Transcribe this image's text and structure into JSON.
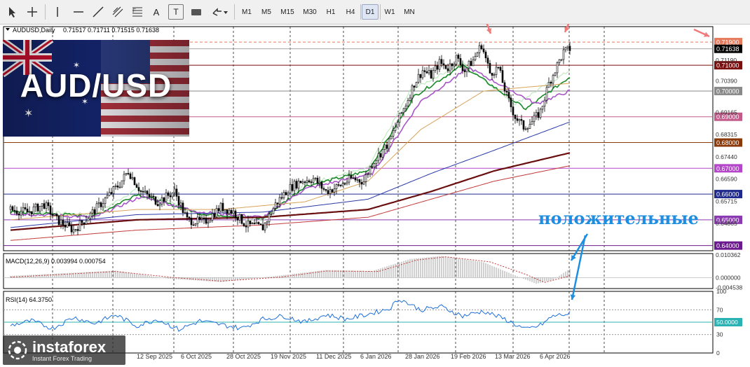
{
  "toolbar": {
    "tools": [
      "cursor-icon",
      "crosshair-icon",
      "vertical-line-icon",
      "horizontal-line-icon",
      "trendline-icon",
      "channel-icon",
      "fibonacci-icon",
      "text-tool-icon",
      "text-label-icon",
      "shapes-icon",
      "arrows-icon"
    ],
    "text_tool_label": "A",
    "label_tool_label": "T",
    "timeframes": [
      "M1",
      "M5",
      "M15",
      "M30",
      "H1",
      "H4",
      "D1",
      "W1",
      "MN"
    ],
    "active_timeframe": "D1"
  },
  "header": {
    "symbol": "AUDUSD,Daily",
    "ohlc": "0.71517 0.71711 0.71515 0.71638"
  },
  "badge": {
    "text": "AUD/USD"
  },
  "annotation": {
    "text": "положительные"
  },
  "brand": {
    "name": "instaforex",
    "tagline": "Instant Forex Trading"
  },
  "chart_data": [
    {
      "type": "candlestick",
      "title": "AUDUSD,Daily",
      "ylim": [
        0.638,
        0.725
      ],
      "price_ticks": [
        "0.71190",
        "0.70390",
        "0.69165",
        "0.68315",
        "0.67440",
        "0.66590",
        "0.65715",
        "0.64865"
      ],
      "current_price": "0.71638",
      "levels": [
        {
          "label": "0.71900",
          "value": 0.719,
          "color": "#e57a5c"
        },
        {
          "label": "0.71000",
          "value": 0.71,
          "color": "#7a0f0f"
        },
        {
          "label": "0.70000",
          "value": 0.7,
          "color": "#8a8a8a"
        },
        {
          "label": "0.69000",
          "value": 0.69,
          "color": "#c25b8a"
        },
        {
          "label": "0.68000",
          "value": 0.68,
          "color": "#8a3a0a"
        },
        {
          "label": "0.67000",
          "value": 0.67,
          "color": "#b446c9"
        },
        {
          "label": "0.66000",
          "value": 0.66,
          "color": "#1f2a8c"
        },
        {
          "label": "0.65000",
          "value": 0.65,
          "color": "#8a3ab0"
        },
        {
          "label": "0.64000",
          "value": 0.64,
          "color": "#6a1a8c"
        }
      ],
      "x_labels": [
        "12 Sep 2025",
        "6 Oct 2025",
        "28 Oct 2025",
        "19 Nov 2025",
        "11 Dec 2025",
        "6 Jan 2026",
        "28 Jan 2026",
        "19 Feb 2026",
        "13 Mar 2026",
        "6 Apr 2026"
      ],
      "price_path": [
        [
          0,
          0.654
        ],
        [
          8,
          0.653
        ],
        [
          16,
          0.656
        ],
        [
          22,
          0.65
        ],
        [
          30,
          0.646
        ],
        [
          38,
          0.652
        ],
        [
          45,
          0.658
        ],
        [
          52,
          0.664
        ],
        [
          56,
          0.669
        ],
        [
          62,
          0.661
        ],
        [
          70,
          0.657
        ],
        [
          78,
          0.661
        ],
        [
          84,
          0.65
        ],
        [
          92,
          0.649
        ],
        [
          100,
          0.655
        ],
        [
          106,
          0.653
        ],
        [
          112,
          0.648
        ],
        [
          120,
          0.647
        ],
        [
          126,
          0.656
        ],
        [
          132,
          0.662
        ],
        [
          138,
          0.665
        ],
        [
          144,
          0.666
        ],
        [
          150,
          0.661
        ],
        [
          156,
          0.663
        ],
        [
          162,
          0.666
        ],
        [
          168,
          0.665
        ],
        [
          172,
          0.672
        ],
        [
          176,
          0.676
        ],
        [
          180,
          0.68
        ],
        [
          184,
          0.688
        ],
        [
          188,
          0.695
        ],
        [
          192,
          0.703
        ],
        [
          196,
          0.708
        ],
        [
          200,
          0.706
        ],
        [
          204,
          0.711
        ],
        [
          208,
          0.709
        ],
        [
          212,
          0.713
        ],
        [
          216,
          0.708
        ],
        [
          220,
          0.712
        ],
        [
          224,
          0.718
        ],
        [
          228,
          0.707
        ],
        [
          232,
          0.709
        ],
        [
          236,
          0.698
        ],
        [
          240,
          0.69
        ],
        [
          244,
          0.686
        ],
        [
          248,
          0.688
        ],
        [
          252,
          0.692
        ],
        [
          256,
          0.703
        ],
        [
          260,
          0.71
        ],
        [
          263,
          0.715
        ],
        [
          266,
          0.7164
        ]
      ],
      "moving_averages": [
        {
          "color": "#b8e6b8",
          "path": [
            [
              0,
              0.6535
            ],
            [
              40,
              0.652
            ],
            [
              60,
              0.662
            ],
            [
              90,
              0.652
            ],
            [
              120,
              0.65
            ],
            [
              140,
              0.664
            ],
            [
              170,
              0.67
            ],
            [
              190,
              0.7
            ],
            [
              215,
              0.711
            ],
            [
              240,
              0.695
            ],
            [
              266,
              0.708
            ]
          ]
        },
        {
          "color": "#1a8a2a",
          "path": [
            [
              0,
              0.653
            ],
            [
              40,
              0.6515
            ],
            [
              60,
              0.66
            ],
            [
              90,
              0.6525
            ],
            [
              120,
              0.6505
            ],
            [
              140,
              0.663
            ],
            [
              170,
              0.669
            ],
            [
              192,
              0.698
            ],
            [
              215,
              0.71
            ],
            [
              245,
              0.693
            ],
            [
              266,
              0.7055
            ]
          ]
        },
        {
          "color": "#a855c8",
          "path": [
            [
              0,
              0.6525
            ],
            [
              40,
              0.651
            ],
            [
              62,
              0.659
            ],
            [
              90,
              0.653
            ],
            [
              120,
              0.651
            ],
            [
              140,
              0.662
            ],
            [
              172,
              0.668
            ],
            [
              195,
              0.696
            ],
            [
              218,
              0.709
            ],
            [
              250,
              0.695
            ],
            [
              266,
              0.7
            ]
          ]
        },
        {
          "color": "#d9a35a",
          "path": [
            [
              0,
              0.65
            ],
            [
              60,
              0.654
            ],
            [
              100,
              0.654
            ],
            [
              140,
              0.657
            ],
            [
              170,
              0.665
            ],
            [
              195,
              0.685
            ],
            [
              225,
              0.7
            ],
            [
              266,
              0.703
            ]
          ]
        },
        {
          "color": "#2a3aa8",
          "path": [
            [
              0,
              0.647
            ],
            [
              60,
              0.652
            ],
            [
              120,
              0.653
            ],
            [
              170,
              0.658
            ],
            [
              200,
              0.668
            ],
            [
              230,
              0.677
            ],
            [
              266,
              0.688
            ]
          ]
        },
        {
          "color": "#6a0f0f",
          "path": [
            [
              0,
              0.646
            ],
            [
              60,
              0.65
            ],
            [
              120,
              0.651
            ],
            [
              170,
              0.654
            ],
            [
              200,
              0.661
            ],
            [
              230,
              0.669
            ],
            [
              266,
              0.676
            ]
          ]
        },
        {
          "color": "#c23a3a",
          "path": [
            [
              0,
              0.642
            ],
            [
              60,
              0.646
            ],
            [
              120,
              0.648
            ],
            [
              170,
              0.651
            ],
            [
              200,
              0.658
            ],
            [
              230,
              0.665
            ],
            [
              266,
              0.671
            ]
          ]
        }
      ]
    },
    {
      "type": "histogram",
      "title": "MACD(12,26,9) 0.003994 0.000754",
      "ticks": [
        "0.010362",
        "0.000000",
        "-0.004538"
      ],
      "ylim": [
        -0.005,
        0.011
      ],
      "histogram_path": [
        [
          0,
          0.0008
        ],
        [
          50,
          0.0032
        ],
        [
          75,
          -0.0005
        ],
        [
          100,
          -0.002
        ],
        [
          125,
          0.0006
        ],
        [
          150,
          0.0035
        ],
        [
          172,
          0.003
        ],
        [
          190,
          0.0085
        ],
        [
          205,
          0.0099
        ],
        [
          225,
          0.007
        ],
        [
          240,
          0.001
        ],
        [
          250,
          -0.0028
        ],
        [
          258,
          -0.001
        ],
        [
          266,
          0.004
        ]
      ],
      "signal_path": [
        [
          0,
          0.0002
        ],
        [
          50,
          0.0028
        ],
        [
          78,
          0.0
        ],
        [
          100,
          -0.0016
        ],
        [
          128,
          0.0002
        ],
        [
          150,
          0.003
        ],
        [
          175,
          0.0028
        ],
        [
          193,
          0.008
        ],
        [
          207,
          0.0095
        ],
        [
          228,
          0.0072
        ],
        [
          245,
          0.0015
        ],
        [
          254,
          -0.0022
        ],
        [
          266,
          0.0008
        ]
      ]
    },
    {
      "type": "line",
      "title": "RSI(14) 64.3750",
      "ticks": [
        "100",
        "70",
        "50.0000",
        "30",
        "0"
      ],
      "ylim": [
        0,
        100
      ],
      "rsi_path": [
        [
          0,
          45
        ],
        [
          10,
          52
        ],
        [
          20,
          40
        ],
        [
          30,
          58
        ],
        [
          40,
          48
        ],
        [
          50,
          62
        ],
        [
          60,
          44
        ],
        [
          70,
          55
        ],
        [
          80,
          38
        ],
        [
          90,
          52
        ],
        [
          100,
          46
        ],
        [
          110,
          40
        ],
        [
          120,
          55
        ],
        [
          130,
          60
        ],
        [
          140,
          50
        ],
        [
          150,
          62
        ],
        [
          160,
          55
        ],
        [
          170,
          63
        ],
        [
          180,
          72
        ],
        [
          185,
          88
        ],
        [
          195,
          70
        ],
        [
          205,
          75
        ],
        [
          215,
          60
        ],
        [
          225,
          68
        ],
        [
          235,
          55
        ],
        [
          245,
          38
        ],
        [
          252,
          45
        ],
        [
          258,
          60
        ],
        [
          266,
          64
        ]
      ]
    }
  ]
}
